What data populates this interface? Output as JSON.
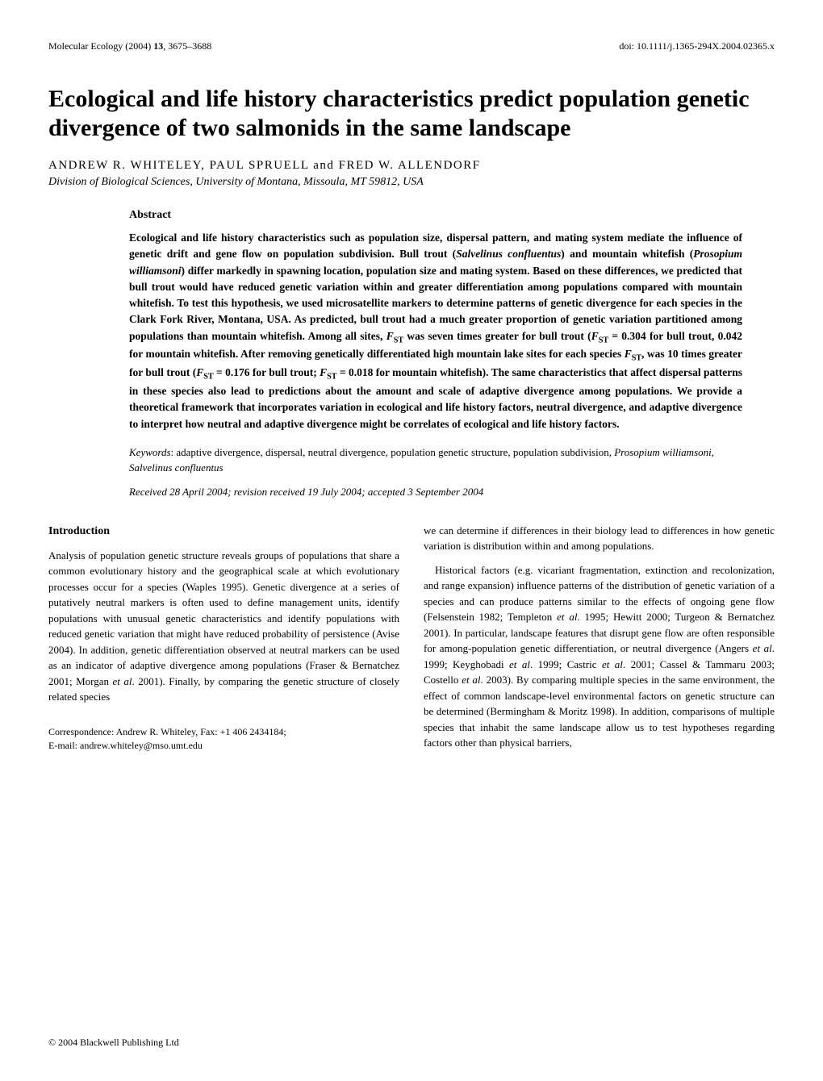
{
  "header": {
    "journal": "Molecular Ecology (2004) ",
    "volume_pages": "13",
    "pages": ", 3675–3688",
    "doi": "doi: 10.1111/j.1365-294X.2004.02365.x"
  },
  "title": "Ecological and life history characteristics predict population genetic divergence of two salmonids in the same landscape",
  "authors": "ANDREW R. WHITELEY, PAUL SPRUELL and FRED W. ALLENDORF",
  "affiliation": "Division of Biological Sciences, University of Montana, Missoula, MT 59812, USA",
  "abstract": {
    "heading": "Abstract",
    "body_html": "Ecological and life history characteristics such as population size, dispersal pattern, and mating system mediate the influence of genetic drift and gene flow on population subdivision. Bull trout (<span class='italic'>Salvelinus confluentus</span>) and mountain whitefish (<span class='italic'>Prosopium williamsoni</span>) differ markedly in spawning location, population size and mating system. Based on these differences, we predicted that bull trout would have reduced genetic variation within and greater differentiation among populations compared with mountain whitefish. To test this hypothesis, we used microsatellite markers to determine patterns of genetic divergence for each species in the Clark Fork River, Montana, USA. As predicted, bull trout had a much greater proportion of genetic variation partitioned among populations than mountain whitefish. Among all sites, <span class='italic'>F</span><span class='subscript'>ST</span> was seven times greater for bull trout (<span class='italic'>F</span><span class='subscript'>ST</span> = 0.304 for bull trout, 0.042 for mountain whitefish. After removing genetically differentiated high mountain lake sites for each species <span class='italic'>F</span><span class='subscript'>ST</span>, was 10 times greater for bull trout (<span class='italic'>F</span><span class='subscript'>ST</span> = 0.176 for bull trout; <span class='italic'>F</span><span class='subscript'>ST</span> = 0.018 for mountain whitefish). The same characteristics that affect dispersal patterns in these species also lead to predictions about the amount and scale of adaptive divergence among populations. We provide a theoretical framework that incorporates variation in ecological and life history factors, neutral divergence, and adaptive divergence to interpret how neutral and adaptive divergence might be correlates of ecological and life history factors."
  },
  "keywords": {
    "label": "Keywords",
    "text_html": ": adaptive divergence, dispersal, neutral divergence, population genetic structure, population subdivision, <span class='italic'>Prosopium williamsoni</span>, <span class='italic'>Salvelinus confluentus</span>"
  },
  "received": "Received 28 April 2004; revision received 19 July 2004; accepted 3 September 2004",
  "intro": {
    "heading": "Introduction",
    "col1_html": "Analysis of population genetic structure reveals groups of populations that share a common evolutionary history and the geographical scale at which evolutionary processes occur for a species (Waples 1995). Genetic divergence at a series of putatively neutral markers is often used to define management units, identify populations with unusual genetic characteristics and identify populations with reduced genetic variation that might have reduced probability of persistence (Avise 2004). In addition, genetic differentiation observed at neutral markers can be used as an indicator of adaptive divergence among populations (Fraser & Bernatchez 2001; Morgan <span class='italic'>et al</span>. 2001). Finally, by comparing the genetic structure of closely related species",
    "col2_part1": "we can determine if differences in their biology lead to differences in how genetic variation is distribution within and among populations.",
    "col2_part2_html": "Historical factors (e.g. vicariant fragmentation, extinction and recolonization, and range expansion) influence patterns of the distribution of genetic variation of a species and can produce patterns similar to the effects of ongoing gene flow (Felsenstein 1982; Templeton <span class='italic'>et al</span>. 1995; Hewitt 2000; Turgeon & Bernatchez 2001). In particular, landscape features that disrupt gene flow are often responsible for among-population genetic differentiation, or neutral divergence (Angers <span class='italic'>et al</span>. 1999; Keyghobadi <span class='italic'>et al</span>. 1999; Castric <span class='italic'>et al</span>. 2001; Cassel & Tammaru 2003; Costello <span class='italic'>et al</span>. 2003). By comparing multiple species in the same environment, the effect of common landscape-level environmental factors on genetic structure can be determined (Bermingham & Moritz 1998). In addition, comparisons of multiple species that inhabit the same landscape allow us to test hypotheses regarding factors other than physical barriers,"
  },
  "correspondence": {
    "line1": "Correspondence: Andrew R. Whiteley, Fax: +1 406 2434184;",
    "line2": "E-mail: andrew.whiteley@mso.umt.edu"
  },
  "footer": "© 2004 Blackwell Publishing Ltd",
  "colors": {
    "text": "#000000",
    "background": "#ffffff"
  },
  "fonts": {
    "body_family": "Palatino",
    "title_size_pt": 22,
    "body_size_pt": 10,
    "abstract_size_pt": 10
  }
}
